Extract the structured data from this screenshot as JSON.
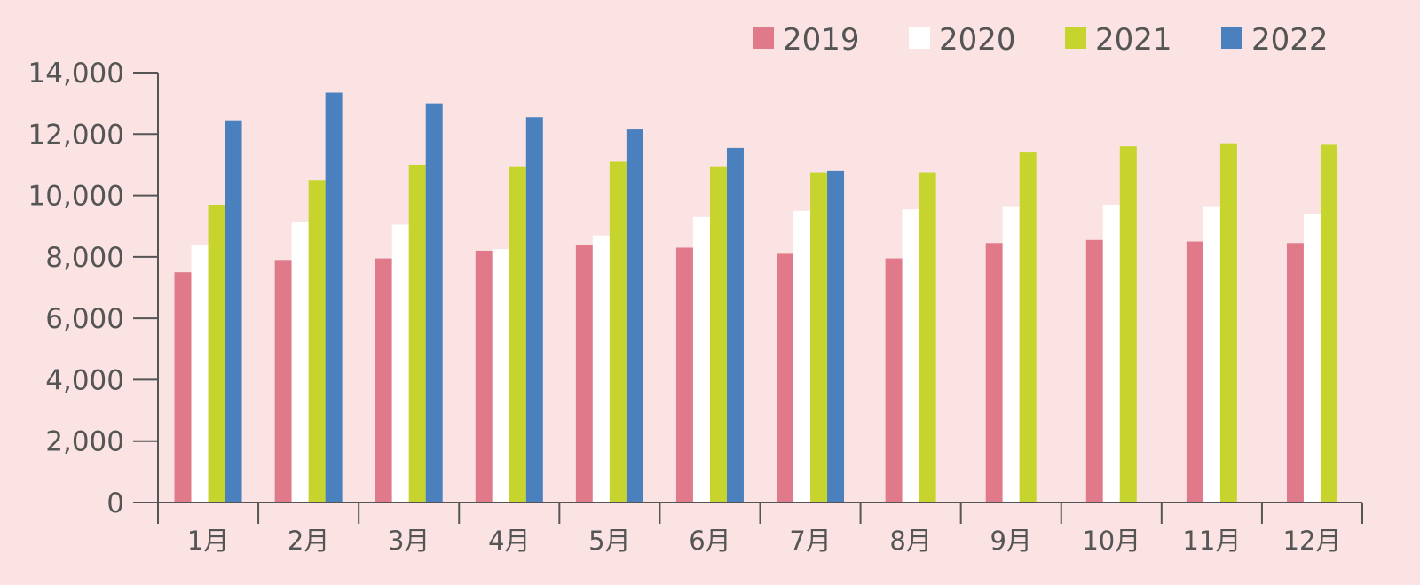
{
  "chart_data": {
    "type": "bar",
    "categories": [
      "1月",
      "2月",
      "3月",
      "4月",
      "5月",
      "6月",
      "7月",
      "8月",
      "9月",
      "10月",
      "11月",
      "12月"
    ],
    "series": [
      {
        "name": "2019",
        "color": "#e07a8b",
        "values": [
          7500,
          7900,
          7950,
          8200,
          8400,
          8300,
          8100,
          7950,
          8450,
          8550,
          8500,
          8450
        ]
      },
      {
        "name": "2020",
        "color": "#ffffff",
        "values": [
          8400,
          9150,
          9050,
          8250,
          8700,
          9300,
          9500,
          9550,
          9650,
          9700,
          9650,
          9400
        ]
      },
      {
        "name": "2021",
        "color": "#c8d42e",
        "values": [
          9700,
          10500,
          11000,
          10950,
          11100,
          10950,
          10750,
          10750,
          11400,
          11600,
          11700,
          11650
        ]
      },
      {
        "name": "2022",
        "color": "#4a80bd",
        "values": [
          12450,
          13350,
          13000,
          12550,
          12150,
          11550,
          10800,
          null,
          null,
          null,
          null,
          null
        ]
      }
    ],
    "ylim": [
      0,
      14000
    ],
    "yticks": [
      0,
      2000,
      4000,
      6000,
      8000,
      10000,
      12000,
      14000
    ],
    "ytick_labels": [
      "0",
      "2,000",
      "4,000",
      "6,000",
      "8,000",
      "10,000",
      "12,000",
      "14,000"
    ],
    "grid": false,
    "legend_position": "top-right",
    "background": "#fbe3e3",
    "axis_color": "#555555"
  }
}
